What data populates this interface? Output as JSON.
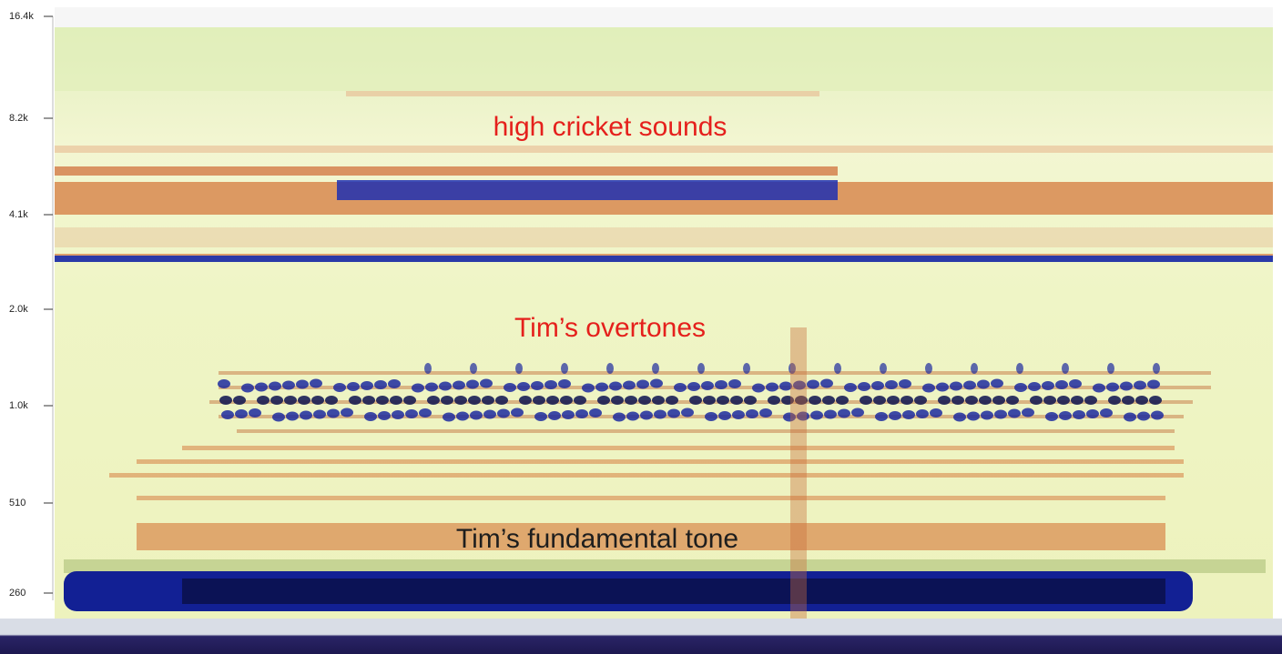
{
  "axis": {
    "ticks": [
      "16.4k",
      "8.2k",
      "4.1k",
      "2.0k",
      "1.0k",
      "510",
      "260"
    ]
  },
  "annotations": [
    "high cricket sounds",
    "Tim’s overtones",
    "Tim’s fundamental tone"
  ]
}
